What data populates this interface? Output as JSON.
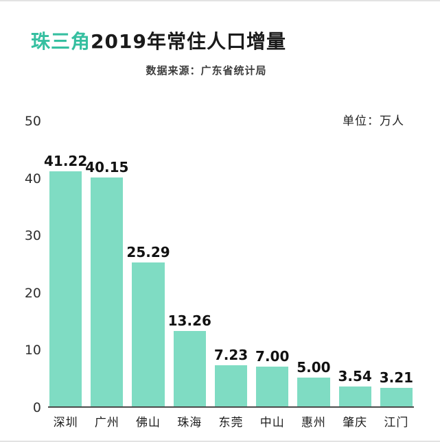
{
  "header": {
    "title_highlight": "珠三角",
    "title_rest": "2019年常住人口增量",
    "subtitle": "数据来源：广东省统计局"
  },
  "unit_label": "单位：万人",
  "colors": {
    "accent_teal": "#35bfa0",
    "bar_fill": "#7fdcc3",
    "axis_line": "#4a4a4a"
  },
  "chart_data": {
    "type": "bar",
    "title": "珠三角2019年常住人口增量",
    "subtitle": "数据来源：广东省统计局",
    "unit": "单位：万人",
    "categories": [
      "深圳",
      "广州",
      "佛山",
      "珠海",
      "东莞",
      "中山",
      "惠州",
      "肇庆",
      "江门"
    ],
    "values": [
      41.22,
      40.15,
      25.29,
      13.26,
      7.23,
      7.0,
      5.0,
      3.54,
      3.21
    ],
    "value_labels": [
      "41.22",
      "40.15",
      "25.29",
      "13.26",
      "7.23",
      "7.00",
      "5.00",
      "3.54",
      "3.21"
    ],
    "xlabel": "",
    "ylabel": "",
    "yticks": [
      0,
      10,
      20,
      30,
      40,
      50
    ],
    "ylim": [
      0,
      50
    ],
    "grid": false,
    "legend": false
  }
}
